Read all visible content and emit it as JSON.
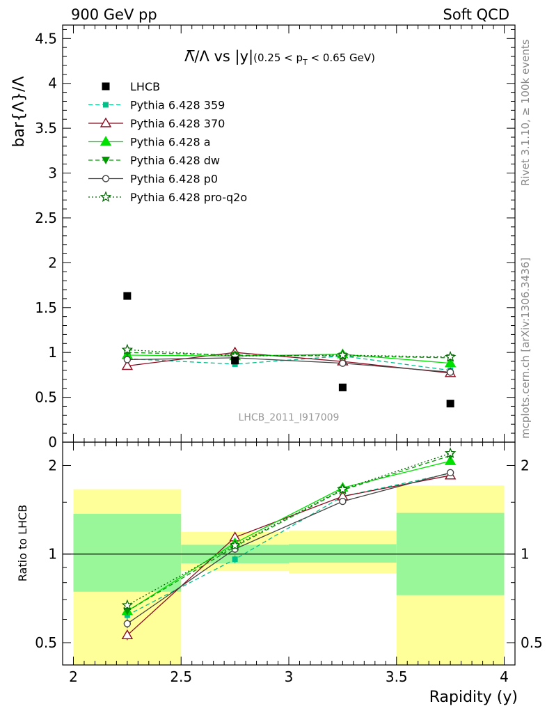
{
  "header": {
    "left": "900 GeV pp",
    "right": "Soft QCD"
  },
  "side_labels": {
    "rivet": "Rivet 3.1.10, ≥ 100k events",
    "mcplots": "mcplots.cern.ch [arXiv:1306.3436]"
  },
  "colors": {
    "LHCB": "#000000",
    "Pythia 6.428 359": "#00c08a",
    "Pythia 6.428 370": "#8b0a1e",
    "Pythia 6.428 a": "#00e000",
    "Pythia 6.428 dw": "#009a00",
    "Pythia 6.428 p0": "#444444",
    "Pythia 6.428 pro-q2o": "#006400",
    "band_inner": "#99f799",
    "band_outer": "#ffff99"
  },
  "chart_data": [
    {
      "type": "scatter",
      "title_prefix": "Λ̅/Λ vs |y|",
      "title_suffix": "(0.25 < p",
      "title_sub": "T",
      "title_end": " < 0.65 GeV)",
      "ylabel": "bar{Λ}/Λ",
      "ylim": [
        0,
        4.65
      ],
      "yticks": [
        0,
        0.5,
        1,
        1.5,
        2,
        2.5,
        3,
        3.5,
        4,
        4.5
      ],
      "ytick_labels": [
        "0",
        "0.5",
        "1",
        "1.5",
        "2",
        "2.5",
        "3",
        "3.5",
        "4",
        "4.5"
      ],
      "xlim": [
        1.95,
        4.05
      ],
      "watermark": "LHCB_2011_I917009",
      "data": {
        "name": "LHCB",
        "x": [
          2.25,
          2.75,
          3.25,
          3.75
        ],
        "y": [
          1.63,
          0.91,
          0.61,
          0.43
        ]
      },
      "series": [
        {
          "name": "Pythia 6.428 359",
          "x": [
            2.25,
            2.75,
            3.25,
            3.75
          ],
          "y": [
            0.93,
            0.87,
            0.96,
            0.8
          ],
          "err": [
            0.02,
            0.03,
            0.03,
            0.03
          ],
          "marker": "square",
          "dash": "dashed"
        },
        {
          "name": "Pythia 6.428 370",
          "x": [
            2.25,
            2.75,
            3.25,
            3.75
          ],
          "y": [
            0.85,
            1.0,
            0.9,
            0.77
          ],
          "err": [
            0.02,
            0.03,
            0.03,
            0.03
          ],
          "marker": "triangle-open",
          "dash": "solid"
        },
        {
          "name": "Pythia 6.428 a",
          "x": [
            2.25,
            2.75,
            3.25,
            3.75
          ],
          "y": [
            0.97,
            0.96,
            0.98,
            0.88
          ],
          "err": [
            0.02,
            0.03,
            0.03,
            0.03
          ],
          "marker": "triangle",
          "dash": "solid"
        },
        {
          "name": "Pythia 6.428 dw",
          "x": [
            2.25,
            2.75,
            3.25,
            3.75
          ],
          "y": [
            1.0,
            0.97,
            0.96,
            0.94
          ],
          "err": [
            0.02,
            0.03,
            0.03,
            0.03
          ],
          "marker": "triangle-down",
          "dash": "dashed"
        },
        {
          "name": "Pythia 6.428 p0",
          "x": [
            2.25,
            2.75,
            3.25,
            3.75
          ],
          "y": [
            0.92,
            0.94,
            0.88,
            0.78
          ],
          "err": [
            0.02,
            0.03,
            0.03,
            0.03
          ],
          "marker": "circle-open",
          "dash": "solid"
        },
        {
          "name": "Pythia 6.428 pro-q2o",
          "x": [
            2.25,
            2.75,
            3.25,
            3.75
          ],
          "y": [
            1.03,
            0.96,
            0.97,
            0.95
          ],
          "err": [
            0.02,
            0.03,
            0.03,
            0.03
          ],
          "marker": "star",
          "dash": "dotted"
        }
      ]
    },
    {
      "type": "scatter",
      "ylabel": "Ratio to LHCB",
      "xlabel": "Rapidity (y)",
      "yscale": "log",
      "ylim": [
        0.42,
        2.4
      ],
      "yticks": [
        0.5,
        1,
        2
      ],
      "ytick_labels": [
        "0.5",
        "1",
        "2"
      ],
      "xlim": [
        1.95,
        4.05
      ],
      "xticks": [
        2,
        2.5,
        3,
        3.5,
        4
      ],
      "xtick_labels": [
        "2",
        "2.5",
        "3",
        "3.5",
        "4"
      ],
      "reference": 1,
      "bands": [
        {
          "x0": 2.0,
          "x1": 2.5,
          "inner": [
            0.745,
            1.37
          ],
          "outer": [
            0.35,
            1.66
          ]
        },
        {
          "x0": 2.5,
          "x1": 3.0,
          "inner": [
            0.93,
            1.075
          ],
          "outer": [
            0.875,
            1.19
          ]
        },
        {
          "x0": 3.0,
          "x1": 3.5,
          "inner": [
            0.935,
            1.08
          ],
          "outer": [
            0.86,
            1.2
          ]
        },
        {
          "x0": 3.5,
          "x1": 4.0,
          "inner": [
            0.725,
            1.38
          ],
          "outer": [
            0.35,
            1.71
          ]
        }
      ],
      "series": [
        {
          "name": "Pythia 6.428 359",
          "x": [
            2.25,
            2.75,
            3.25,
            3.75
          ],
          "y": [
            0.62,
            0.96,
            1.57,
            1.88
          ],
          "err": [
            0.02,
            0.03,
            0.04,
            0.05
          ],
          "marker": "square",
          "dash": "dashed"
        },
        {
          "name": "Pythia 6.428 370",
          "x": [
            2.25,
            2.75,
            3.25,
            3.75
          ],
          "y": [
            0.53,
            1.14,
            1.57,
            1.85
          ],
          "err": [
            0.02,
            0.03,
            0.04,
            0.05
          ],
          "marker": "triangle-open",
          "dash": "solid"
        },
        {
          "name": "Pythia 6.428 a",
          "x": [
            2.25,
            2.75,
            3.25,
            3.75
          ],
          "y": [
            0.64,
            1.09,
            1.68,
            2.07
          ],
          "err": [
            0.02,
            0.03,
            0.04,
            0.05
          ],
          "marker": "triangle",
          "dash": "solid"
        },
        {
          "name": "Pythia 6.428 dw",
          "x": [
            2.25,
            2.75,
            3.25,
            3.75
          ],
          "y": [
            0.64,
            1.06,
            1.65,
            2.16
          ],
          "err": [
            0.02,
            0.03,
            0.04,
            0.05
          ],
          "marker": "triangle-down",
          "dash": "dashed"
        },
        {
          "name": "Pythia 6.428 p0",
          "x": [
            2.25,
            2.75,
            3.25,
            3.75
          ],
          "y": [
            0.58,
            1.04,
            1.51,
            1.89
          ],
          "err": [
            0.02,
            0.03,
            0.04,
            0.05
          ],
          "marker": "circle-open",
          "dash": "solid"
        },
        {
          "name": "Pythia 6.428 pro-q2o",
          "x": [
            2.25,
            2.75,
            3.25,
            3.75
          ],
          "y": [
            0.67,
            1.07,
            1.66,
            2.2
          ],
          "err": [
            0.02,
            0.03,
            0.04,
            0.05
          ],
          "marker": "star",
          "dash": "dotted"
        }
      ]
    }
  ]
}
